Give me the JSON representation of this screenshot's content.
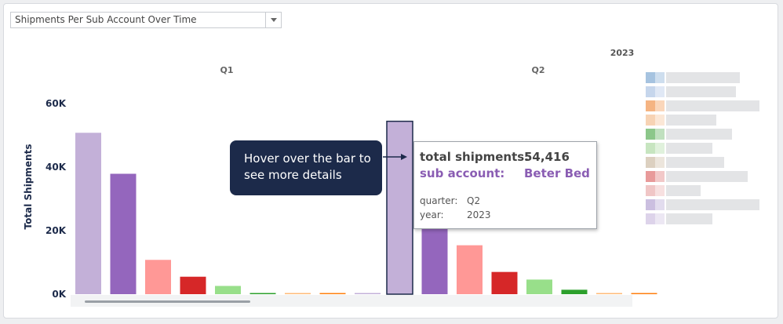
{
  "dropdown": {
    "value": "Shipments Per Sub Account Over Time"
  },
  "callout": {
    "text": "Hover over the bar to see more details"
  },
  "tooltip": {
    "total_label": "total shipments:",
    "total_value": "54,416",
    "sub_label": "sub account:",
    "sub_value": "Beter Bed",
    "quarter_label": "quarter:",
    "quarter_value": "Q2",
    "year_label": "year:",
    "year_value": "2023"
  },
  "colors": {
    "lavender": "#c3b0d8",
    "purple": "#9466bd",
    "salmon": "#ff9896",
    "red": "#d62728",
    "light-green": "#98df8a",
    "green": "#2ca02c",
    "light-orange": "#ffbb78",
    "orange": "#ff7f0e",
    "callout": "#1c2a4a",
    "highlight": "#8a5db3"
  },
  "chart_data": {
    "type": "bar",
    "ylabel": "Total Shipments",
    "xlabel": "",
    "ylim": [
      0,
      65000
    ],
    "yticks": [
      {
        "value": 0,
        "label": "0K"
      },
      {
        "value": 20000,
        "label": "20K"
      },
      {
        "value": 40000,
        "label": "40K"
      },
      {
        "value": 60000,
        "label": "60K"
      }
    ],
    "year_label": "2023",
    "groups": [
      {
        "name": "Q1",
        "bars": [
          {
            "value": 50800,
            "color": "lavender"
          },
          {
            "value": 37900,
            "color": "purple"
          },
          {
            "value": 10800,
            "color": "salmon"
          },
          {
            "value": 5500,
            "color": "red"
          },
          {
            "value": 2600,
            "color": "light-green"
          },
          {
            "value": 300,
            "color": "green"
          },
          {
            "value": 150,
            "color": "light-orange"
          },
          {
            "value": 250,
            "color": "orange"
          },
          {
            "value": 50,
            "color": "lavender"
          }
        ]
      },
      {
        "name": "Q2",
        "bars": [
          {
            "value": 54416,
            "color": "lavender",
            "highlighted": true
          },
          {
            "value": 21500,
            "color": "purple"
          },
          {
            "value": 15400,
            "color": "salmon"
          },
          {
            "value": 7000,
            "color": "red"
          },
          {
            "value": 4600,
            "color": "light-green"
          },
          {
            "value": 1400,
            "color": "green"
          },
          {
            "value": 200,
            "color": "light-orange"
          },
          {
            "value": 200,
            "color": "orange"
          }
        ]
      }
    ],
    "legend": {
      "position": "right",
      "swatches": [
        "#a6c3e0",
        "#c6d6ec",
        "#f5b482",
        "#f7d3b4",
        "#8cc78a",
        "#c7e5c0",
        "#dcd0c0",
        "#e89a9a",
        "#f0c6c6",
        "#cbbfe0",
        "#ddd3ea"
      ]
    }
  }
}
